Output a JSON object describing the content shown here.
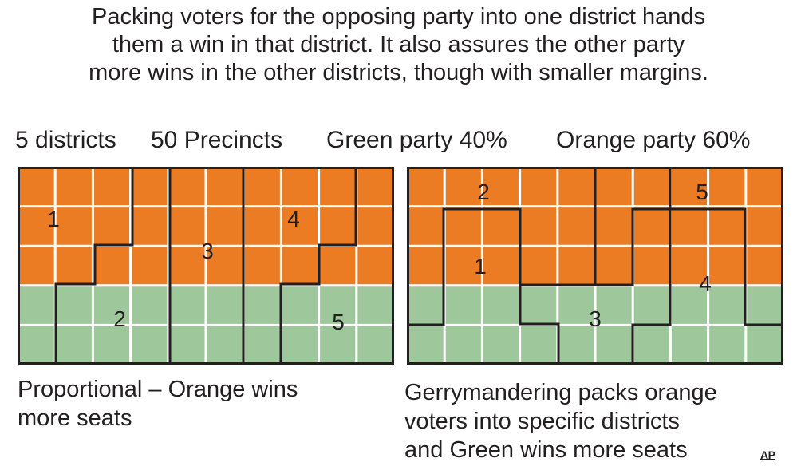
{
  "headline": [
    "Packing voters for the opposing party into one district hands",
    "them a win in that district. It also assures the other party",
    "more wins in the other districts, though with smaller margins."
  ],
  "stats": {
    "districts": "5 districts",
    "precincts": "50 Precincts",
    "green": "Green party 40%",
    "orange": "Orange party 60%"
  },
  "colors": {
    "orange": "#ec7c24",
    "green": "#9fc79c",
    "grid_line": "#ffffff",
    "border": "#231f20"
  },
  "grid": {
    "rows": 5,
    "cols": 10,
    "row_parties": [
      "orange",
      "orange",
      "orange",
      "green",
      "green"
    ]
  },
  "maps": [
    {
      "name": "proportional",
      "caption": [
        "Proportional – Orange wins",
        "more seats"
      ],
      "district_labels": [
        "1",
        "2",
        "3",
        "4",
        "5"
      ]
    },
    {
      "name": "gerrymandered",
      "caption": [
        "Gerrymandering packs orange",
        "voters into specific districts",
        "and Green wins more seats"
      ],
      "district_labels": [
        "2",
        "5",
        "1",
        "4",
        "3"
      ]
    }
  ],
  "credit": "AP"
}
